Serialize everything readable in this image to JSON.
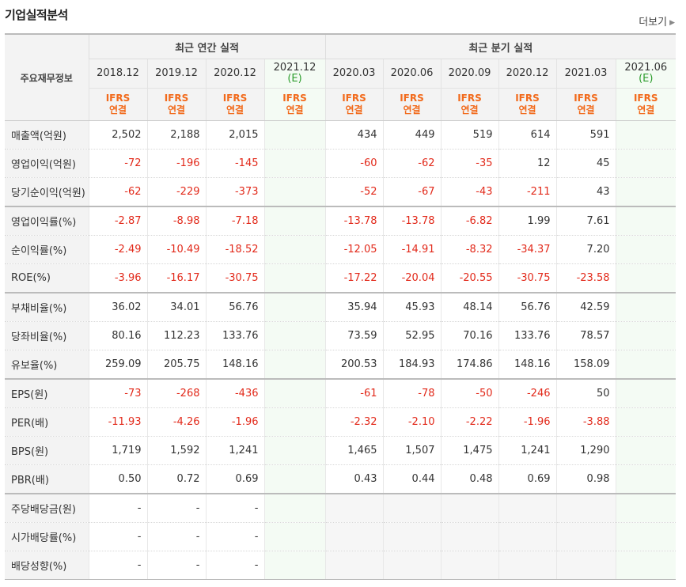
{
  "title": "기업실적분석",
  "more_label": "더보기",
  "corner_label": "주요재무정보",
  "annual_label": "최근 연간 실적",
  "quarter_label": "최근 분기 실적",
  "estimate_flag": "(E)",
  "ifrs_line1": "IFRS",
  "ifrs_line2": "연결",
  "periods": [
    {
      "label": "2018.12",
      "est": false
    },
    {
      "label": "2019.12",
      "est": false
    },
    {
      "label": "2020.12",
      "est": false
    },
    {
      "label": "2021.12",
      "est": true
    },
    {
      "label": "2020.03",
      "est": false
    },
    {
      "label": "2020.06",
      "est": false
    },
    {
      "label": "2020.09",
      "est": false
    },
    {
      "label": "2020.12",
      "est": false
    },
    {
      "label": "2021.03",
      "est": false
    },
    {
      "label": "2021.06",
      "est": true
    }
  ],
  "rows": [
    {
      "label": "매출액(억원)",
      "values": [
        "2,502",
        "2,188",
        "2,015",
        "",
        "434",
        "449",
        "519",
        "614",
        "591",
        ""
      ]
    },
    {
      "label": "영업이익(억원)",
      "values": [
        "-72",
        "-196",
        "-145",
        "",
        "-60",
        "-62",
        "-35",
        "12",
        "45",
        ""
      ]
    },
    {
      "label": "당기순이익(억원)",
      "values": [
        "-62",
        "-229",
        "-373",
        "",
        "-52",
        "-67",
        "-43",
        "-211",
        "43",
        ""
      ]
    },
    {
      "label": "영업이익률(%)",
      "values": [
        "-2.87",
        "-8.98",
        "-7.18",
        "",
        "-13.78",
        "-13.78",
        "-6.82",
        "1.99",
        "7.61",
        ""
      ]
    },
    {
      "label": "순이익률(%)",
      "values": [
        "-2.49",
        "-10.49",
        "-18.52",
        "",
        "-12.05",
        "-14.91",
        "-8.32",
        "-34.37",
        "7.20",
        ""
      ]
    },
    {
      "label": "ROE(%)",
      "values": [
        "-3.96",
        "-16.17",
        "-30.75",
        "",
        "-17.22",
        "-20.04",
        "-20.55",
        "-30.75",
        "-23.58",
        ""
      ]
    },
    {
      "label": "부채비율(%)",
      "values": [
        "36.02",
        "34.01",
        "56.76",
        "",
        "35.94",
        "45.93",
        "48.14",
        "56.76",
        "42.59",
        ""
      ]
    },
    {
      "label": "당좌비율(%)",
      "values": [
        "80.16",
        "112.23",
        "133.76",
        "",
        "73.59",
        "52.95",
        "70.16",
        "133.76",
        "78.57",
        ""
      ]
    },
    {
      "label": "유보율(%)",
      "values": [
        "259.09",
        "205.75",
        "148.16",
        "",
        "200.53",
        "184.93",
        "174.86",
        "148.16",
        "158.09",
        ""
      ]
    },
    {
      "label": "EPS(원)",
      "values": [
        "-73",
        "-268",
        "-436",
        "",
        "-61",
        "-78",
        "-50",
        "-246",
        "50",
        ""
      ]
    },
    {
      "label": "PER(배)",
      "values": [
        "-11.93",
        "-4.26",
        "-1.96",
        "",
        "-2.32",
        "-2.10",
        "-2.22",
        "-1.96",
        "-3.88",
        ""
      ]
    },
    {
      "label": "BPS(원)",
      "values": [
        "1,719",
        "1,592",
        "1,241",
        "",
        "1,465",
        "1,507",
        "1,475",
        "1,241",
        "1,290",
        ""
      ]
    },
    {
      "label": "PBR(배)",
      "values": [
        "0.50",
        "0.72",
        "0.69",
        "",
        "0.43",
        "0.44",
        "0.48",
        "0.69",
        "0.98",
        ""
      ]
    },
    {
      "label": "주당배당금(원)",
      "values": [
        "-",
        "-",
        "-",
        "",
        "",
        "",
        "",
        "",
        "",
        ""
      ]
    },
    {
      "label": "시가배당률(%)",
      "values": [
        "-",
        "-",
        "-",
        "",
        "",
        "",
        "",
        "",
        "",
        ""
      ]
    },
    {
      "label": "배당성향(%)",
      "values": [
        "-",
        "-",
        "-",
        "",
        "",
        "",
        "",
        "",
        "",
        ""
      ]
    }
  ],
  "colors": {
    "negative": "#e2291a",
    "ifrs": "#f26a1b",
    "estimate": "#2f9e2f",
    "header_bg": "#f3f3f3"
  }
}
